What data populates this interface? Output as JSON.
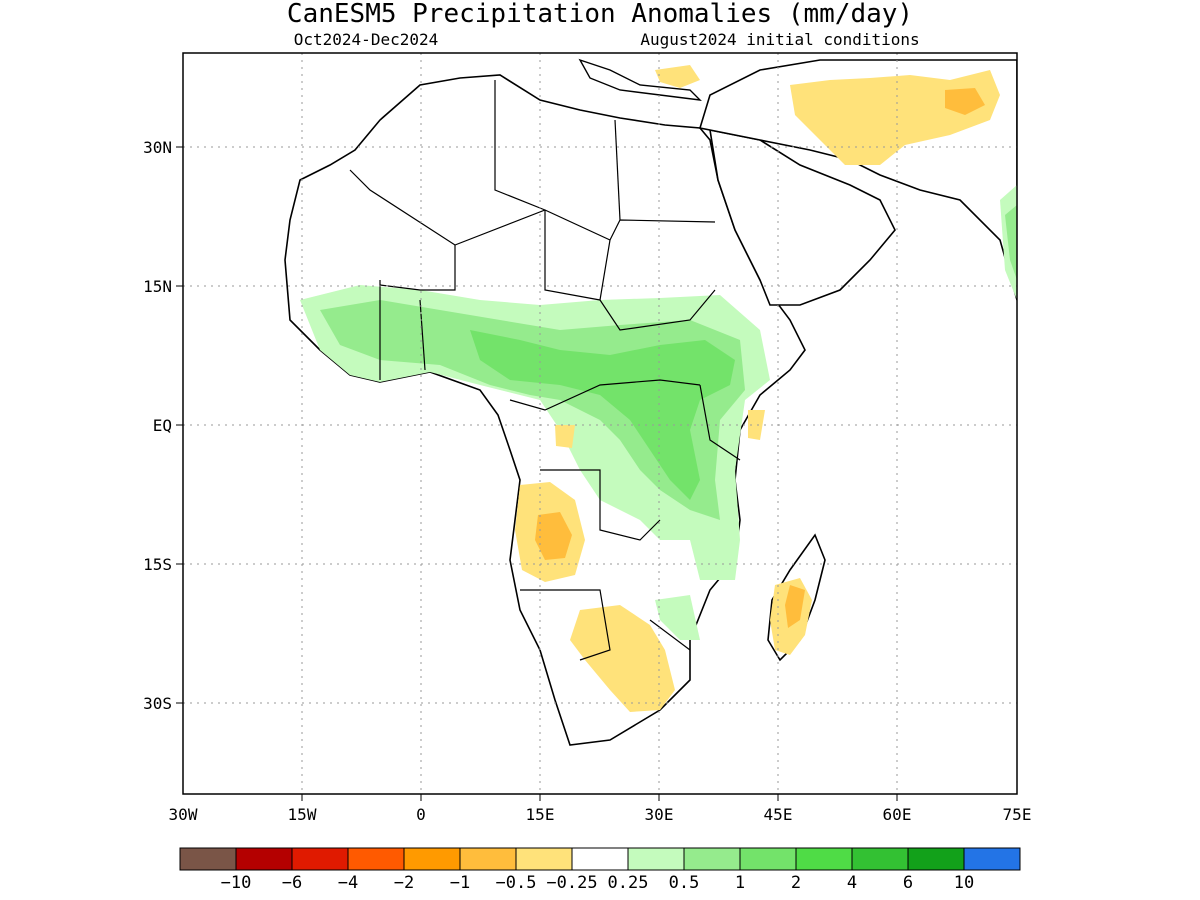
{
  "title": "CanESM5 Precipitation Anomalies (mm/day)",
  "period": "Oct2024-Dec2024",
  "initial_conditions": "August2024 initial conditions",
  "lat_ticks": [
    "30N",
    "15N",
    "EQ",
    "15S",
    "30S"
  ],
  "lon_ticks": [
    "30W",
    "15W",
    "0",
    "15E",
    "30E",
    "45E",
    "60E",
    "75E"
  ],
  "colorbar": {
    "colors": [
      "#7a5547",
      "#b40000",
      "#e01a00",
      "#ff5a00",
      "#ff9a00",
      "#ffbd3c",
      "#ffe27a",
      "#ffffff",
      "#c4fbbd",
      "#95eb8d",
      "#73e36a",
      "#4fdc46",
      "#33c133",
      "#12a11a",
      "#2374e6"
    ],
    "labels": [
      "-10",
      "-6",
      "-4",
      "-2",
      "-1",
      "-0.5",
      "-0.25",
      "0.25",
      "0.5",
      "1",
      "2",
      "4",
      "6",
      "10"
    ]
  },
  "map": {
    "lon_range": [
      -30,
      75
    ],
    "lat_range": [
      -40,
      40
    ],
    "gridlines": "dotted"
  }
}
